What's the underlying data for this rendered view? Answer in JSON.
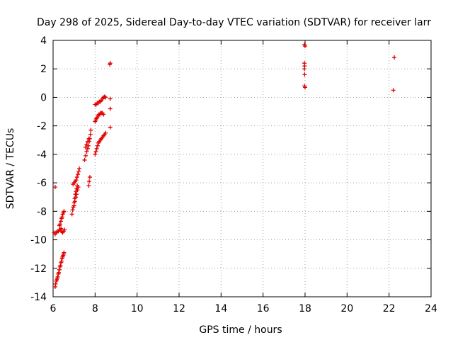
{
  "chart_data": {
    "type": "scatter",
    "title": "Day 298 of 2025, Sidereal Day-to-day VTEC variation (SDTVAR) for receiver larr",
    "xlabel": "GPS time / hours",
    "ylabel": "SDTVAR / TECUs",
    "xlim": [
      6,
      24
    ],
    "ylim": [
      -14,
      4
    ],
    "xticks": [
      "6",
      "8",
      "10",
      "12",
      "14",
      "16",
      "18",
      "20",
      "22",
      "24"
    ],
    "yticks": [
      "4",
      "2",
      "0",
      "-2",
      "-4",
      "-6",
      "-8",
      "-10",
      "-12",
      "-14"
    ],
    "grid": true,
    "marker": "plus",
    "color": "#e00000",
    "series": [
      {
        "name": "SDTVAR",
        "points": [
          [
            6.1,
            -6.3
          ],
          [
            6.1,
            -13.3
          ],
          [
            6.12,
            -13.1
          ],
          [
            6.15,
            -12.9
          ],
          [
            6.18,
            -12.8
          ],
          [
            6.2,
            -12.7
          ],
          [
            6.22,
            -12.6
          ],
          [
            6.25,
            -12.4
          ],
          [
            6.27,
            -12.3
          ],
          [
            6.3,
            -12.1
          ],
          [
            6.33,
            -11.9
          ],
          [
            6.35,
            -11.8
          ],
          [
            6.38,
            -11.6
          ],
          [
            6.4,
            -11.5
          ],
          [
            6.43,
            -11.3
          ],
          [
            6.45,
            -11.2
          ],
          [
            6.48,
            -11.1
          ],
          [
            6.5,
            -11.0
          ],
          [
            6.52,
            -10.9
          ],
          [
            6.05,
            -9.5
          ],
          [
            6.1,
            -9.6
          ],
          [
            6.15,
            -9.5
          ],
          [
            6.2,
            -9.4
          ],
          [
            6.25,
            -9.4
          ],
          [
            6.3,
            -9.3
          ],
          [
            6.35,
            -9.3
          ],
          [
            6.38,
            -9.2
          ],
          [
            6.4,
            -9.4
          ],
          [
            6.45,
            -9.5
          ],
          [
            6.5,
            -9.4
          ],
          [
            6.55,
            -9.3
          ],
          [
            6.3,
            -9.0
          ],
          [
            6.33,
            -8.9
          ],
          [
            6.37,
            -8.7
          ],
          [
            6.4,
            -8.5
          ],
          [
            6.43,
            -8.4
          ],
          [
            6.46,
            -8.2
          ],
          [
            6.49,
            -8.1
          ],
          [
            6.52,
            -8.0
          ],
          [
            6.9,
            -8.2
          ],
          [
            6.93,
            -7.9
          ],
          [
            6.96,
            -7.7
          ],
          [
            7.0,
            -7.4
          ],
          [
            7.03,
            -7.1
          ],
          [
            7.06,
            -6.8
          ],
          [
            7.09,
            -6.6
          ],
          [
            7.12,
            -6.4
          ],
          [
            7.15,
            -6.2
          ],
          [
            6.95,
            -6.1
          ],
          [
            7.0,
            -6.0
          ],
          [
            7.05,
            -5.9
          ],
          [
            7.1,
            -5.8
          ],
          [
            7.14,
            -5.6
          ],
          [
            7.18,
            -5.4
          ],
          [
            7.22,
            -5.2
          ],
          [
            7.25,
            -5.0
          ],
          [
            7.0,
            -7.6
          ],
          [
            7.04,
            -7.3
          ],
          [
            7.08,
            -7.0
          ],
          [
            7.12,
            -6.8
          ],
          [
            7.16,
            -6.5
          ],
          [
            7.2,
            -6.3
          ],
          [
            7.5,
            -4.4
          ],
          [
            7.55,
            -4.1
          ],
          [
            7.6,
            -3.8
          ],
          [
            7.65,
            -3.6
          ],
          [
            7.68,
            -3.4
          ],
          [
            7.72,
            -3.1
          ],
          [
            7.75,
            -2.9
          ],
          [
            7.78,
            -2.6
          ],
          [
            7.8,
            -2.3
          ],
          [
            7.55,
            -3.5
          ],
          [
            7.6,
            -3.3
          ],
          [
            7.65,
            -3.1
          ],
          [
            7.7,
            -2.9
          ],
          [
            7.7,
            -6.2
          ],
          [
            7.72,
            -5.9
          ],
          [
            7.75,
            -5.6
          ],
          [
            8.0,
            -4.0
          ],
          [
            8.04,
            -3.8
          ],
          [
            8.08,
            -3.6
          ],
          [
            8.12,
            -3.4
          ],
          [
            8.16,
            -3.2
          ],
          [
            8.2,
            -3.1
          ],
          [
            8.25,
            -3.0
          ],
          [
            8.3,
            -2.9
          ],
          [
            8.35,
            -2.8
          ],
          [
            8.4,
            -2.7
          ],
          [
            8.45,
            -2.6
          ],
          [
            8.5,
            -2.5
          ],
          [
            8.0,
            -1.7
          ],
          [
            8.03,
            -1.6
          ],
          [
            8.06,
            -1.5
          ],
          [
            8.1,
            -1.4
          ],
          [
            8.14,
            -1.3
          ],
          [
            8.18,
            -1.2
          ],
          [
            8.22,
            -1.2
          ],
          [
            8.26,
            -1.1
          ],
          [
            8.3,
            -1.1
          ],
          [
            8.35,
            -1.1
          ],
          [
            8.4,
            -1.2
          ],
          [
            8.0,
            -0.5
          ],
          [
            8.05,
            -0.5
          ],
          [
            8.1,
            -0.4
          ],
          [
            8.15,
            -0.4
          ],
          [
            8.2,
            -0.3
          ],
          [
            8.25,
            -0.3
          ],
          [
            8.3,
            -0.2
          ],
          [
            8.35,
            -0.1
          ],
          [
            8.4,
            0.0
          ],
          [
            8.45,
            0.05
          ],
          [
            8.5,
            0.0
          ],
          [
            8.7,
            2.3
          ],
          [
            8.72,
            2.4
          ],
          [
            8.72,
            -0.1
          ],
          [
            8.72,
            -0.8
          ],
          [
            8.72,
            -2.1
          ],
          [
            17.97,
            3.7
          ],
          [
            18.0,
            3.6
          ],
          [
            17.97,
            2.4
          ],
          [
            17.98,
            2.2
          ],
          [
            17.97,
            2.0
          ],
          [
            17.98,
            1.6
          ],
          [
            17.97,
            0.8
          ],
          [
            18.0,
            0.7
          ],
          [
            22.25,
            2.8
          ],
          [
            22.2,
            0.5
          ]
        ]
      }
    ]
  }
}
